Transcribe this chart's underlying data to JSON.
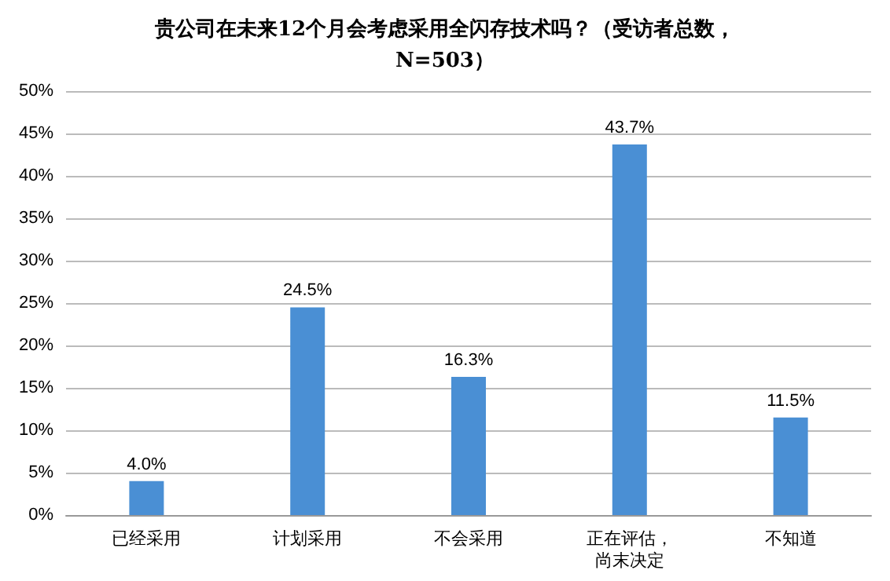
{
  "chart_data": {
    "type": "bar",
    "title": "贵公司在未来12个月会考虑采用全闪存技术吗？（受访者总数，N=503）",
    "categories": [
      "已经采用",
      "计划采用",
      "不会采用",
      "正在评估，尚末决定",
      "不知道"
    ],
    "values": [
      4.0,
      24.5,
      16.3,
      43.7,
      11.5
    ],
    "value_labels": [
      "4.0%",
      "24.5%",
      "16.3%",
      "43.7%",
      "11.5%"
    ],
    "color": "#4a8fd4",
    "ylim": [
      0,
      50
    ],
    "yticks": [
      {
        "value": 0,
        "label": "0%"
      },
      {
        "value": 5,
        "label": "5%"
      },
      {
        "value": 10,
        "label": "10%"
      },
      {
        "value": 15,
        "label": "15%"
      },
      {
        "value": 20,
        "label": "20%"
      },
      {
        "value": 25,
        "label": "25%"
      },
      {
        "value": 30,
        "label": "30%"
      },
      {
        "value": 35,
        "label": "35%"
      },
      {
        "value": 40,
        "label": "40%"
      },
      {
        "value": 45,
        "label": "45%"
      },
      {
        "value": 50,
        "label": "50%"
      }
    ],
    "grid": "y"
  }
}
